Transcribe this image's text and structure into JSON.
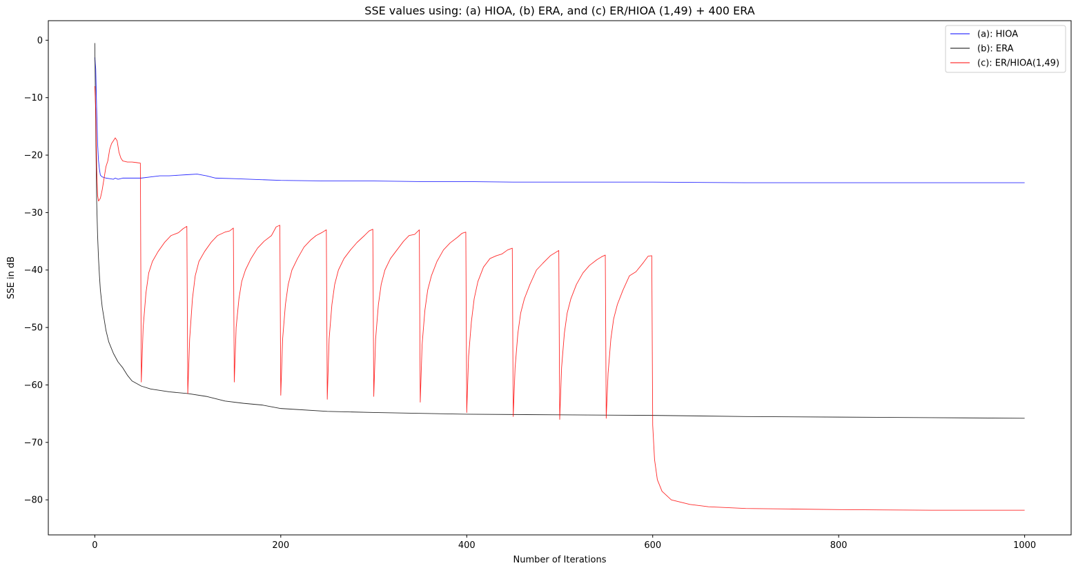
{
  "chart_data": {
    "type": "line",
    "title": "SSE values using: (a) HIOA, (b) ERA, and (c) ER/HIOA (1,49) + 400 ERA",
    "xlabel": "Number of Iterations",
    "ylabel": "SSE in dB",
    "xlim": [
      -50,
      1050
    ],
    "ylim": [
      -86.1,
      3.4
    ],
    "xticks": [
      0,
      200,
      400,
      600,
      800,
      1000
    ],
    "yticks": [
      0,
      -10,
      -20,
      -30,
      -40,
      -50,
      -60,
      -70,
      -80
    ],
    "grid": false,
    "legend_position": "top-right",
    "series": [
      {
        "name": "(a): HIOA",
        "color": "#0000ff",
        "points": [
          [
            0,
            -3
          ],
          [
            1,
            -5
          ],
          [
            2,
            -12
          ],
          [
            3,
            -18
          ],
          [
            4,
            -21
          ],
          [
            5,
            -22.5
          ],
          [
            6,
            -23.5
          ],
          [
            8,
            -23.8
          ],
          [
            12,
            -24
          ],
          [
            16,
            -24.1
          ],
          [
            20,
            -24.2
          ],
          [
            22,
            -24.0
          ],
          [
            25,
            -24.2
          ],
          [
            30,
            -24.0
          ],
          [
            40,
            -24.0
          ],
          [
            50,
            -24.0
          ],
          [
            60,
            -23.8
          ],
          [
            70,
            -23.6
          ],
          [
            80,
            -23.6
          ],
          [
            90,
            -23.5
          ],
          [
            100,
            -23.4
          ],
          [
            110,
            -23.3
          ],
          [
            120,
            -23.6
          ],
          [
            130,
            -24.0
          ],
          [
            150,
            -24.1
          ],
          [
            200,
            -24.4
          ],
          [
            250,
            -24.5
          ],
          [
            300,
            -24.5
          ],
          [
            350,
            -24.6
          ],
          [
            400,
            -24.6
          ],
          [
            450,
            -24.7
          ],
          [
            500,
            -24.7
          ],
          [
            600,
            -24.7
          ],
          [
            700,
            -24.8
          ],
          [
            800,
            -24.8
          ],
          [
            900,
            -24.8
          ],
          [
            1000,
            -24.8
          ]
        ]
      },
      {
        "name": "(b): ERA",
        "color": "#000000",
        "points": [
          [
            0,
            -0.5
          ],
          [
            1,
            -15
          ],
          [
            2,
            -28
          ],
          [
            3,
            -34
          ],
          [
            4,
            -38
          ],
          [
            5,
            -41
          ],
          [
            6,
            -43.5
          ],
          [
            8,
            -46.5
          ],
          [
            10,
            -48.5
          ],
          [
            12,
            -50.5
          ],
          [
            15,
            -52.5
          ],
          [
            20,
            -54.5
          ],
          [
            25,
            -56
          ],
          [
            30,
            -57
          ],
          [
            35,
            -58.3
          ],
          [
            40,
            -59.3
          ],
          [
            50,
            -60.2
          ],
          [
            60,
            -60.7
          ],
          [
            80,
            -61.2
          ],
          [
            100,
            -61.5
          ],
          [
            120,
            -62.0
          ],
          [
            140,
            -62.8
          ],
          [
            160,
            -63.2
          ],
          [
            180,
            -63.5
          ],
          [
            200,
            -64.1
          ],
          [
            250,
            -64.6
          ],
          [
            300,
            -64.8
          ],
          [
            400,
            -65.1
          ],
          [
            500,
            -65.2
          ],
          [
            600,
            -65.3
          ],
          [
            700,
            -65.5
          ],
          [
            800,
            -65.6
          ],
          [
            900,
            -65.7
          ],
          [
            1000,
            -65.8
          ]
        ]
      },
      {
        "name": "(c): ER/HIOA(1,49)",
        "color": "#ff0000",
        "points": [
          [
            0,
            -8
          ],
          [
            1,
            -12
          ],
          [
            2,
            -22
          ],
          [
            3,
            -27
          ],
          [
            4,
            -28
          ],
          [
            6,
            -27.5
          ],
          [
            8,
            -26
          ],
          [
            10,
            -24
          ],
          [
            12,
            -22
          ],
          [
            14,
            -21
          ],
          [
            16,
            -19
          ],
          [
            18,
            -18
          ],
          [
            20,
            -17.5
          ],
          [
            22,
            -17
          ],
          [
            24,
            -17.5
          ],
          [
            26,
            -19.5
          ],
          [
            28,
            -20.5
          ],
          [
            30,
            -21
          ],
          [
            35,
            -21.2
          ],
          [
            40,
            -21.2
          ],
          [
            45,
            -21.3
          ],
          [
            49,
            -21.4
          ],
          [
            50,
            -59.5
          ],
          [
            52,
            -50
          ],
          [
            55,
            -44
          ],
          [
            58,
            -40.5
          ],
          [
            62,
            -38.5
          ],
          [
            68,
            -36.8
          ],
          [
            75,
            -35.2
          ],
          [
            82,
            -34
          ],
          [
            90,
            -33.5
          ],
          [
            95,
            -32.8
          ],
          [
            99,
            -32.4
          ],
          [
            100,
            -61.5
          ],
          [
            102,
            -52
          ],
          [
            105,
            -45
          ],
          [
            108,
            -41
          ],
          [
            112,
            -38.5
          ],
          [
            118,
            -36.8
          ],
          [
            125,
            -35.2
          ],
          [
            132,
            -34
          ],
          [
            140,
            -33.4
          ],
          [
            145,
            -33.2
          ],
          [
            149,
            -32.7
          ],
          [
            150,
            -59.5
          ],
          [
            152,
            -50
          ],
          [
            155,
            -45
          ],
          [
            158,
            -42
          ],
          [
            162,
            -40
          ],
          [
            168,
            -38
          ],
          [
            175,
            -36.2
          ],
          [
            182,
            -35
          ],
          [
            190,
            -34
          ],
          [
            195,
            -32.5
          ],
          [
            199,
            -32.2
          ],
          [
            200,
            -61.8
          ],
          [
            202,
            -52
          ],
          [
            205,
            -46
          ],
          [
            208,
            -42.5
          ],
          [
            212,
            -40
          ],
          [
            218,
            -38
          ],
          [
            225,
            -36
          ],
          [
            232,
            -34.8
          ],
          [
            238,
            -34
          ],
          [
            244,
            -33.5
          ],
          [
            249,
            -33
          ],
          [
            250,
            -62.5
          ],
          [
            252,
            -52
          ],
          [
            255,
            -46
          ],
          [
            258,
            -42.5
          ],
          [
            262,
            -40
          ],
          [
            268,
            -38
          ],
          [
            275,
            -36.5
          ],
          [
            282,
            -35.2
          ],
          [
            290,
            -34
          ],
          [
            295,
            -33.2
          ],
          [
            299,
            -32.9
          ],
          [
            300,
            -62
          ],
          [
            302,
            -52
          ],
          [
            305,
            -46
          ],
          [
            308,
            -42.5
          ],
          [
            312,
            -40
          ],
          [
            318,
            -38
          ],
          [
            325,
            -36.5
          ],
          [
            332,
            -35
          ],
          [
            338,
            -34
          ],
          [
            344,
            -33.8
          ],
          [
            349,
            -33
          ],
          [
            350,
            -63
          ],
          [
            352,
            -53
          ],
          [
            355,
            -47
          ],
          [
            358,
            -43.5
          ],
          [
            362,
            -41
          ],
          [
            368,
            -38.5
          ],
          [
            375,
            -36.5
          ],
          [
            382,
            -35.3
          ],
          [
            390,
            -34.3
          ],
          [
            395,
            -33.6
          ],
          [
            399,
            -33.4
          ],
          [
            400,
            -64.8
          ],
          [
            402,
            -55
          ],
          [
            405,
            -49
          ],
          [
            408,
            -45
          ],
          [
            412,
            -42
          ],
          [
            418,
            -39.5
          ],
          [
            425,
            -38
          ],
          [
            432,
            -37.5
          ],
          [
            438,
            -37.2
          ],
          [
            444,
            -36.5
          ],
          [
            449,
            -36.2
          ],
          [
            450,
            -65.5
          ],
          [
            452,
            -57
          ],
          [
            455,
            -51
          ],
          [
            458,
            -47.5
          ],
          [
            462,
            -45
          ],
          [
            468,
            -42.5
          ],
          [
            475,
            -40
          ],
          [
            482,
            -38.8
          ],
          [
            490,
            -37.5
          ],
          [
            495,
            -37
          ],
          [
            499,
            -36.6
          ],
          [
            500,
            -66
          ],
          [
            502,
            -57
          ],
          [
            505,
            -51
          ],
          [
            508,
            -47.5
          ],
          [
            512,
            -45
          ],
          [
            518,
            -42.5
          ],
          [
            525,
            -40.5
          ],
          [
            532,
            -39.2
          ],
          [
            540,
            -38.2
          ],
          [
            545,
            -37.7
          ],
          [
            549,
            -37.4
          ],
          [
            550,
            -65.8
          ],
          [
            552,
            -58
          ],
          [
            555,
            -52
          ],
          [
            558,
            -48.5
          ],
          [
            562,
            -46
          ],
          [
            568,
            -43.5
          ],
          [
            575,
            -41
          ],
          [
            582,
            -40.3
          ],
          [
            590,
            -38.7
          ],
          [
            595,
            -37.6
          ],
          [
            599,
            -37.5
          ],
          [
            600,
            -67
          ],
          [
            602,
            -73
          ],
          [
            605,
            -76.5
          ],
          [
            610,
            -78.5
          ],
          [
            620,
            -80
          ],
          [
            640,
            -80.8
          ],
          [
            660,
            -81.2
          ],
          [
            700,
            -81.5
          ],
          [
            750,
            -81.6
          ],
          [
            800,
            -81.7
          ],
          [
            900,
            -81.8
          ],
          [
            1000,
            -81.8
          ]
        ]
      }
    ]
  }
}
